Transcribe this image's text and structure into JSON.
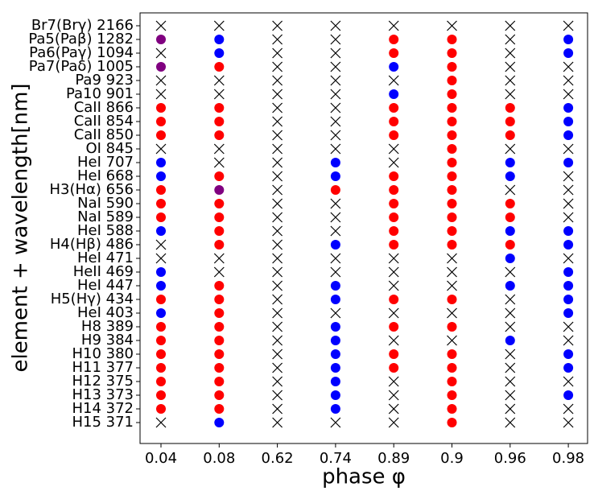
{
  "chart_data": {
    "type": "dot-matrix",
    "x_label": "phase φ",
    "y_label": "element + wavelength[nm]",
    "categories": [
      "0.04",
      "0.08",
      "0.62",
      "0.74",
      "0.89",
      "0.9",
      "0.96",
      "0.98"
    ],
    "rows": [
      "Br7(Brγ) 2166",
      "Pa5(Paβ) 1282",
      "Pa6(Paγ) 1094",
      "Pa7(Paδ) 1005",
      "Pa9 923",
      "Pa10 901",
      "CaII 866",
      "CaII 854",
      "CaII 850",
      "OI 845",
      "HeI 707",
      "HeI 668",
      "H3(Hα) 656",
      "NaI 590",
      "NaI 589",
      "HeI 588",
      "H4(Hβ) 486",
      "HeI 471",
      "HeII 469",
      "HeI 447",
      "H5(Hγ) 434",
      "HeI 403",
      "H8 389",
      "H9 384",
      "H10 380",
      "H11 377",
      "H12 375",
      "H13 373",
      "H14 372",
      "H15 371"
    ],
    "colors": {
      "red": "#ff0000",
      "blue": "#0000ff",
      "purple": "#800080",
      "x": "#000000"
    },
    "cells": [
      [
        "x",
        "x",
        "x",
        "x",
        "x",
        "x",
        "x",
        "x"
      ],
      [
        "purple",
        "blue",
        "x",
        "x",
        "red",
        "red",
        "x",
        "blue"
      ],
      [
        "x",
        "blue",
        "x",
        "x",
        "red",
        "red",
        "x",
        "blue"
      ],
      [
        "purple",
        "red",
        "x",
        "x",
        "blue",
        "red",
        "x",
        "x"
      ],
      [
        "x",
        "x",
        "x",
        "x",
        "x",
        "red",
        "x",
        "x"
      ],
      [
        "x",
        "x",
        "x",
        "x",
        "blue",
        "red",
        "x",
        "x"
      ],
      [
        "red",
        "red",
        "x",
        "x",
        "red",
        "red",
        "red",
        "blue"
      ],
      [
        "red",
        "red",
        "x",
        "x",
        "red",
        "red",
        "red",
        "blue"
      ],
      [
        "red",
        "red",
        "x",
        "x",
        "red",
        "red",
        "red",
        "blue"
      ],
      [
        "x",
        "x",
        "x",
        "x",
        "x",
        "red",
        "x",
        "x"
      ],
      [
        "blue",
        "x",
        "x",
        "blue",
        "x",
        "red",
        "blue",
        "blue"
      ],
      [
        "blue",
        "red",
        "x",
        "blue",
        "red",
        "red",
        "blue",
        "x"
      ],
      [
        "red",
        "purple",
        "x",
        "red",
        "red",
        "red",
        "x",
        "x"
      ],
      [
        "red",
        "red",
        "x",
        "x",
        "red",
        "red",
        "red",
        "x"
      ],
      [
        "red",
        "red",
        "x",
        "x",
        "red",
        "red",
        "red",
        "x"
      ],
      [
        "blue",
        "red",
        "x",
        "x",
        "red",
        "red",
        "blue",
        "blue"
      ],
      [
        "x",
        "red",
        "x",
        "blue",
        "red",
        "red",
        "red",
        "blue"
      ],
      [
        "x",
        "x",
        "x",
        "x",
        "x",
        "x",
        "blue",
        "x"
      ],
      [
        "blue",
        "x",
        "x",
        "x",
        "x",
        "x",
        "x",
        "blue"
      ],
      [
        "blue",
        "red",
        "x",
        "blue",
        "x",
        "x",
        "blue",
        "blue"
      ],
      [
        "red",
        "red",
        "x",
        "blue",
        "red",
        "red",
        "x",
        "blue"
      ],
      [
        "blue",
        "red",
        "x",
        "x",
        "x",
        "x",
        "x",
        "blue"
      ],
      [
        "red",
        "red",
        "x",
        "blue",
        "red",
        "red",
        "x",
        "x"
      ],
      [
        "red",
        "red",
        "x",
        "blue",
        "x",
        "x",
        "blue",
        "x"
      ],
      [
        "red",
        "red",
        "x",
        "blue",
        "red",
        "red",
        "x",
        "blue"
      ],
      [
        "red",
        "red",
        "x",
        "blue",
        "red",
        "red",
        "x",
        "blue"
      ],
      [
        "red",
        "red",
        "x",
        "blue",
        "x",
        "red",
        "x",
        "x"
      ],
      [
        "red",
        "red",
        "x",
        "blue",
        "x",
        "red",
        "x",
        "blue"
      ],
      [
        "red",
        "red",
        "x",
        "blue",
        "x",
        "red",
        "x",
        "x"
      ],
      [
        "x",
        "blue",
        "x",
        "x",
        "x",
        "red",
        "x",
        "x"
      ]
    ]
  }
}
